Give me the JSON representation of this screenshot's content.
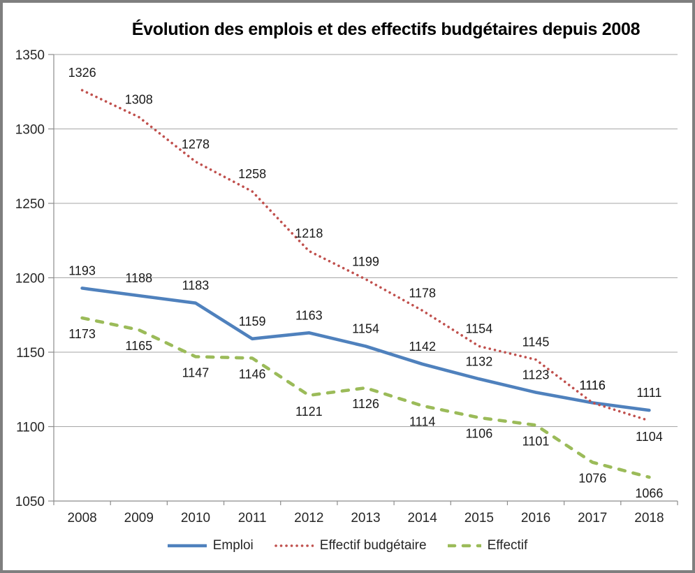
{
  "chart_data": {
    "type": "line",
    "title": "Évolution des emplois et des effectifs budgétaires depuis 2008",
    "categories": [
      "2008",
      "2009",
      "2010",
      "2011",
      "2012",
      "2013",
      "2014",
      "2015",
      "2016",
      "2017",
      "2018"
    ],
    "series": [
      {
        "name": "Emploi",
        "color": "#4F81BD",
        "line_style": "solid",
        "label_side": "above",
        "values": [
          1193,
          1188,
          1183,
          1159,
          1163,
          1154,
          1142,
          1132,
          1123,
          1116,
          1111
        ]
      },
      {
        "name": "Effectif budgétaire",
        "color": "#C0504D",
        "line_style": "dotted",
        "label_side": "above",
        "label_side_overrides": {
          "10": "below"
        },
        "values": [
          1326,
          1308,
          1278,
          1258,
          1218,
          1199,
          1178,
          1154,
          1145,
          1116,
          1104
        ]
      },
      {
        "name": "Effectif",
        "color": "#9BBB59",
        "line_style": "dashed",
        "label_side": "below",
        "values": [
          1173,
          1165,
          1147,
          1146,
          1121,
          1126,
          1114,
          1106,
          1101,
          1076,
          1066
        ]
      }
    ],
    "ylim": [
      1050,
      1350
    ],
    "ytick_step": 50,
    "yticks": [
      1350,
      1300,
      1250,
      1200,
      1150,
      1100,
      1050
    ],
    "grid": true,
    "legend_position": "bottom",
    "gridline_color": "#A6A6A6",
    "axis_color": "#8C8C8C",
    "text_color": "#262626",
    "data_label_color": "#1a1a1a",
    "frame_border_color": "#7f7f7f"
  }
}
